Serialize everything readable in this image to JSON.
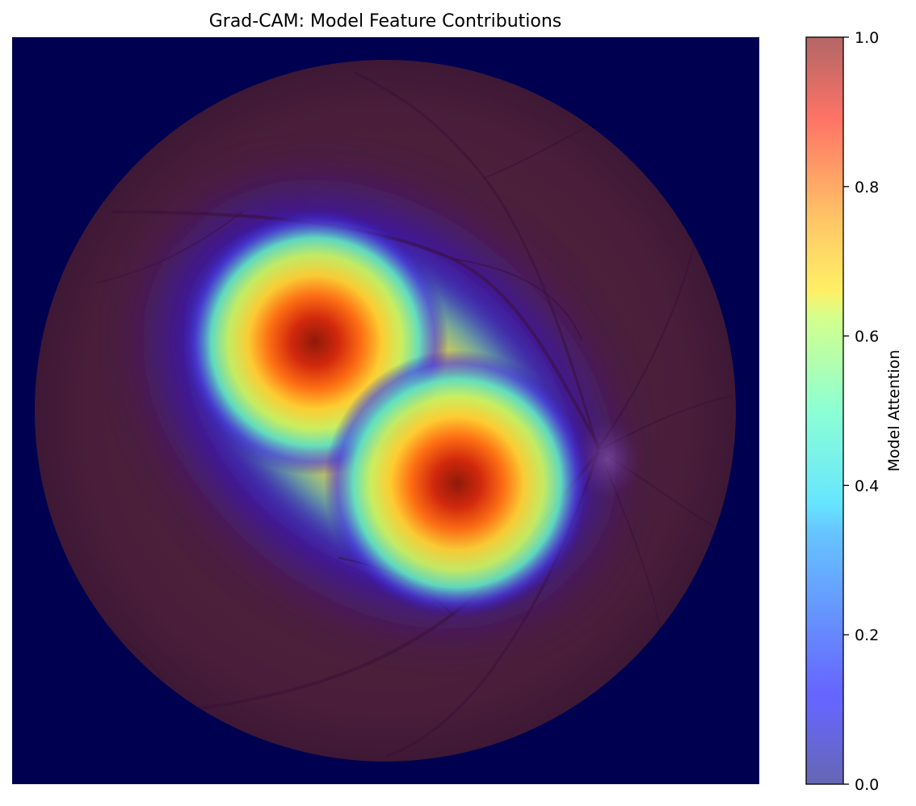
{
  "chart_data": {
    "type": "heatmap",
    "title": "Grad-CAM: Model Feature Contributions",
    "colorbar": {
      "label": "Model Attention",
      "colormap": "jet",
      "range": [
        0.0,
        1.0
      ],
      "ticks": [
        "0.0",
        "0.2",
        "0.4",
        "0.6",
        "0.8",
        "1.0"
      ],
      "tick_values": [
        0.0,
        0.2,
        0.4,
        0.6,
        0.8,
        1.0
      ]
    },
    "background_image": "retinal-fundus",
    "peaks": [
      {
        "value": 1.0
      },
      {
        "value": 1.0
      }
    ],
    "axes_visible": false
  },
  "colors": {
    "background": "#000050",
    "fundus": "#4a1f3a",
    "vessel": "#3a1038",
    "optic_disc": "#6a3a8a"
  }
}
